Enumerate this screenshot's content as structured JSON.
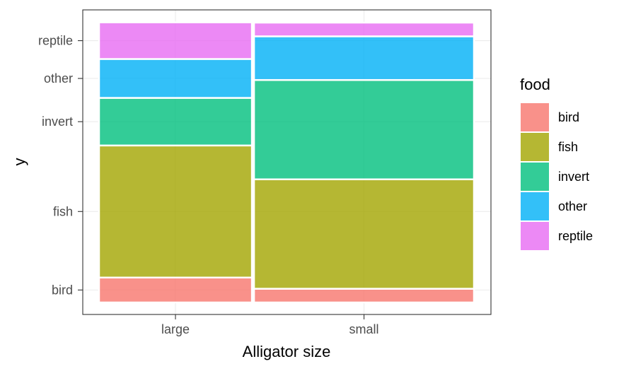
{
  "chart_data": {
    "type": "mosaic",
    "title": "",
    "xlabel": "Alligator size",
    "ylabel": "y",
    "categories": [
      "large",
      "small"
    ],
    "x_widths": [
      0.41,
      0.59
    ],
    "levels": [
      "bird",
      "fish",
      "invert",
      "other",
      "reptile"
    ],
    "proportions": {
      "large": {
        "bird": 0.089,
        "fish": 0.472,
        "invert": 0.17,
        "other": 0.139,
        "reptile": 0.131
      },
      "small": {
        "bird": 0.049,
        "fish": 0.391,
        "invert": 0.355,
        "other": 0.156,
        "reptile": 0.049
      }
    },
    "y_tick_labels": [
      "bird",
      "fish",
      "invert",
      "other",
      "reptile"
    ],
    "legend": {
      "title": "food",
      "position": "right",
      "items": [
        {
          "label": "bird",
          "color": "#F8766D"
        },
        {
          "label": "fish",
          "color": "#A3A500"
        },
        {
          "label": "invert",
          "color": "#00BF7D"
        },
        {
          "label": "other",
          "color": "#00B0F6"
        },
        {
          "label": "reptile",
          "color": "#E76BF3"
        }
      ]
    },
    "grid": true,
    "theme": "bw"
  }
}
